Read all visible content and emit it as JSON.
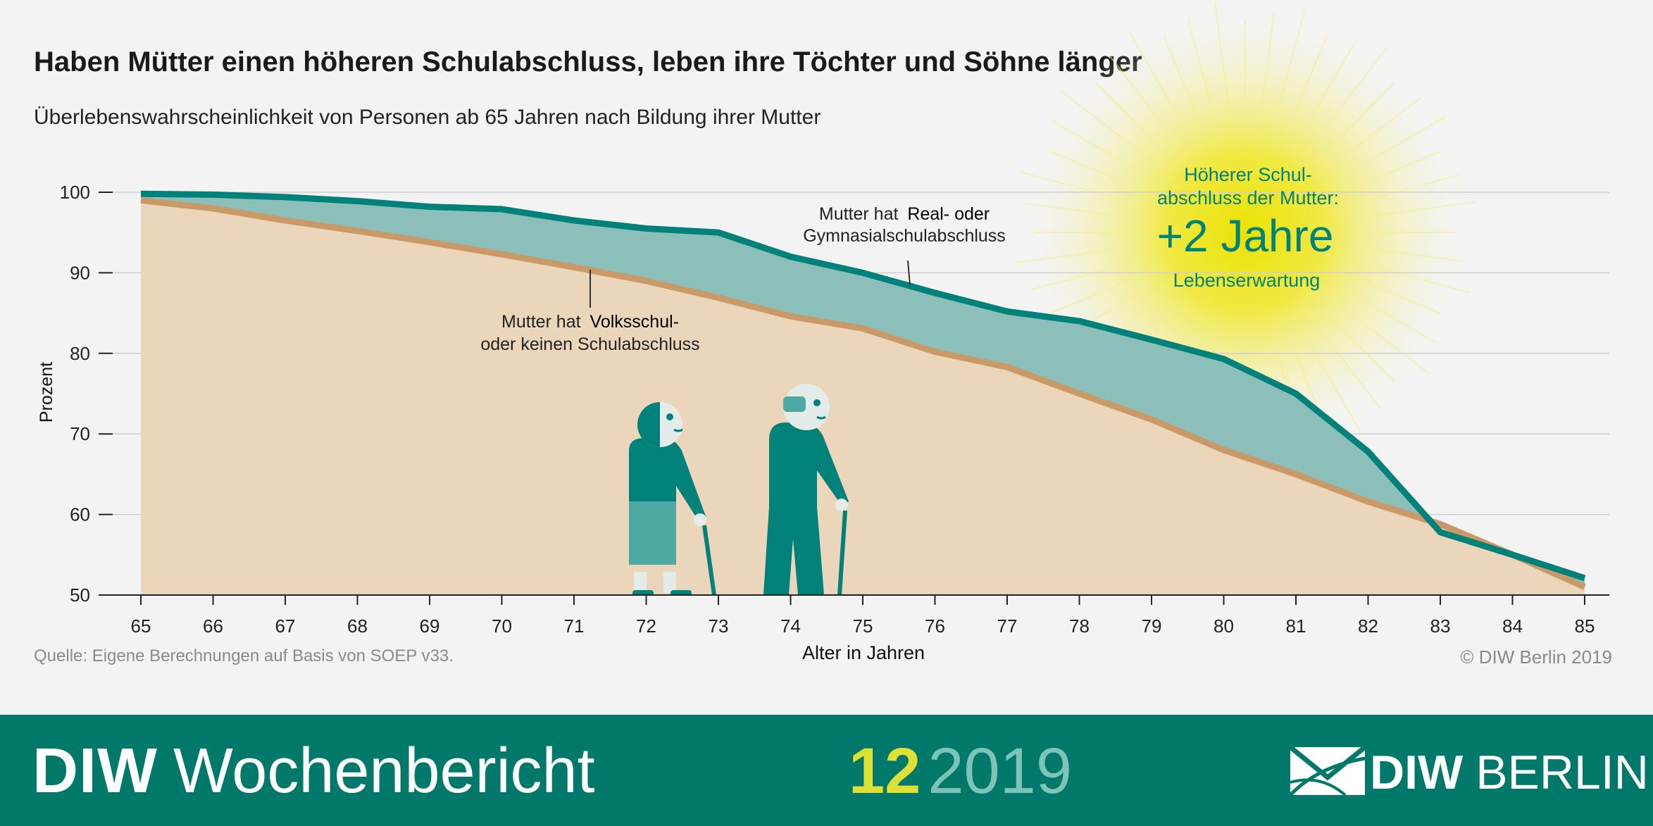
{
  "header": {
    "title": "Haben Mütter einen höheren Schulabschluss, leben ihre Töchter und Söhne länger",
    "subtitle": "Überlebenswahrscheinlichkeit von Personen ab 65 Jahren nach Bildung ihrer Mutter"
  },
  "chart_data": {
    "type": "area",
    "x": [
      65,
      66,
      67,
      68,
      69,
      70,
      71,
      72,
      73,
      74,
      75,
      76,
      77,
      78,
      79,
      80,
      81,
      82,
      83,
      84,
      85
    ],
    "xlabel": "Alter in Jahren",
    "ylabel": "Prozent",
    "ylim": [
      50,
      100
    ],
    "yticks": [
      50,
      60,
      70,
      80,
      90,
      100
    ],
    "grid": true,
    "series": [
      {
        "name_prefix": "Mutter hat",
        "name_bold": "Real- oder",
        "name_line2": "Gymnasialschulabschluss",
        "color": "#00827a",
        "fill": "#8cbfba",
        "values": [
          99.8,
          99.7,
          99.4,
          98.9,
          98.2,
          97.9,
          96.5,
          95.5,
          95.0,
          92.0,
          90.0,
          87.5,
          85.2,
          84.0,
          81.7,
          79.3,
          75.0,
          67.8,
          57.8,
          55.0,
          52.1
        ]
      },
      {
        "name_prefix": "Mutter hat",
        "name_bold": "Volksschul-",
        "name_line2": "oder keinen Schulabschluss",
        "color": "#c99a68",
        "fill": "#ebd5bb",
        "values": [
          99.0,
          98.0,
          96.5,
          95.2,
          93.8,
          92.3,
          90.7,
          89.0,
          86.9,
          84.6,
          83.1,
          80.2,
          78.3,
          75.0,
          71.8,
          68.0,
          65.0,
          61.6,
          58.8,
          55.0,
          51.0
        ]
      }
    ],
    "annotation": {
      "line1": "Höherer Schul-",
      "line2": "abschluss der Mutter:",
      "value": "+2 Jahre",
      "line3": "Lebenserwartung"
    }
  },
  "footer": {
    "source": "Quelle: Eigene Berechnungen auf Basis von SOEP v33.",
    "copyright": "© DIW Berlin 2019",
    "brand_bold": "DIW",
    "brand_name": "Wochenbericht",
    "issue_number": "12",
    "issue_year": "2019",
    "logo_bold": "DIW",
    "logo_city": "BERLIN"
  },
  "colors": {
    "teal": "#00827a",
    "tan": "#c99a68",
    "footer_bg": "#00796b",
    "sun": "#ebe200"
  }
}
